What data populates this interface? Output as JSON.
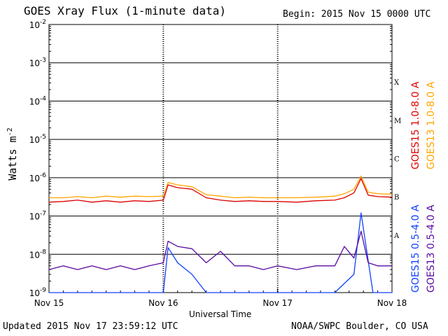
{
  "header": {
    "title": "GOES Xray Flux (1-minute data)",
    "begin": "Begin:  2015 Nov 15 0000 UTC"
  },
  "footer": {
    "updated": "Updated 2015 Nov 17 23:59:12 UTC",
    "credit": "NOAA/SWPC Boulder, CO USA"
  },
  "colors": {
    "goes15_long": "#dd0000",
    "goes13_long": "#ffa500",
    "goes15_short": "#1040ff",
    "goes13_short": "#5a0aa0"
  },
  "chart_data": {
    "type": "line",
    "title": "GOES Xray Flux (1-minute data)",
    "xlabel": "Universal Time",
    "ylabel": "Watts m",
    "ylabel_sup": "-2",
    "y_scale": "log",
    "ylim": [
      1e-09,
      0.01
    ],
    "xlim": [
      "2015-11-15 00:00",
      "2015-11-18 00:00"
    ],
    "x_ticks": [
      {
        "x": "2015-11-15",
        "label": "Nov 15"
      },
      {
        "x": "2015-11-16",
        "label": "Nov 16"
      },
      {
        "x": "2015-11-17",
        "label": "Nov 17"
      },
      {
        "x": "2015-11-18",
        "label": "Nov 18"
      }
    ],
    "y_ticks": [
      {
        "exp": -2
      },
      {
        "exp": -3
      },
      {
        "exp": -4
      },
      {
        "exp": -5
      },
      {
        "exp": -6
      },
      {
        "exp": -7
      },
      {
        "exp": -8
      },
      {
        "exp": -9
      }
    ],
    "flare_classes": [
      {
        "label": "X",
        "exp": -3.5
      },
      {
        "label": "M",
        "exp": -4.5
      },
      {
        "label": "C",
        "exp": -5.5
      },
      {
        "label": "B",
        "exp": -6.5
      },
      {
        "label": "A",
        "exp": -7.5
      }
    ],
    "grid": true,
    "legend_position": "right",
    "series": [
      {
        "name": "GOES15 1.0-8.0 A",
        "color_key": "goes15_long",
        "x": [
          "2015-11-15 00:00",
          "2015-11-15 03:00",
          "2015-11-15 06:00",
          "2015-11-15 09:00",
          "2015-11-15 12:00",
          "2015-11-15 15:00",
          "2015-11-15 18:00",
          "2015-11-15 21:00",
          "2015-11-16 00:00",
          "2015-11-16 01:00",
          "2015-11-16 03:00",
          "2015-11-16 06:00",
          "2015-11-16 09:00",
          "2015-11-16 12:00",
          "2015-11-16 15:00",
          "2015-11-16 18:00",
          "2015-11-16 21:00",
          "2015-11-17 00:00",
          "2015-11-17 04:00",
          "2015-11-17 08:00",
          "2015-11-17 12:00",
          "2015-11-17 14:00",
          "2015-11-17 16:00",
          "2015-11-17 17:30",
          "2015-11-17 19:00",
          "2015-11-17 21:00",
          "2015-11-18 00:00"
        ],
        "y": [
          2.3e-07,
          2.4e-07,
          2.6e-07,
          2.3e-07,
          2.5e-07,
          2.3e-07,
          2.5e-07,
          2.4e-07,
          2.6e-07,
          6.5e-07,
          5.5e-07,
          5e-07,
          3e-07,
          2.6e-07,
          2.4e-07,
          2.5e-07,
          2.4e-07,
          2.4e-07,
          2.3e-07,
          2.5e-07,
          2.6e-07,
          3e-07,
          4e-07,
          9.5e-07,
          3.5e-07,
          3.2e-07,
          3.1e-07
        ]
      },
      {
        "name": "GOES13 1.0-8.0 A",
        "color_key": "goes13_long",
        "x": [
          "2015-11-15 00:00",
          "2015-11-15 03:00",
          "2015-11-15 06:00",
          "2015-11-15 09:00",
          "2015-11-15 12:00",
          "2015-11-15 15:00",
          "2015-11-15 18:00",
          "2015-11-15 21:00",
          "2015-11-16 00:00",
          "2015-11-16 01:00",
          "2015-11-16 03:00",
          "2015-11-16 06:00",
          "2015-11-16 09:00",
          "2015-11-16 12:00",
          "2015-11-16 15:00",
          "2015-11-16 18:00",
          "2015-11-16 21:00",
          "2015-11-17 00:00",
          "2015-11-17 04:00",
          "2015-11-17 08:00",
          "2015-11-17 12:00",
          "2015-11-17 14:00",
          "2015-11-17 16:00",
          "2015-11-17 17:30",
          "2015-11-17 19:00",
          "2015-11-17 21:00",
          "2015-11-18 00:00"
        ],
        "y": [
          3e-07,
          3e-07,
          3.2e-07,
          3e-07,
          3.3e-07,
          3.1e-07,
          3.3e-07,
          3.2e-07,
          3.3e-07,
          7.5e-07,
          6.5e-07,
          5.8e-07,
          3.6e-07,
          3.3e-07,
          3e-07,
          3.1e-07,
          3e-07,
          3e-07,
          3e-07,
          3.1e-07,
          3.3e-07,
          3.8e-07,
          5e-07,
          1.1e-06,
          4.2e-07,
          3.8e-07,
          3.7e-07
        ]
      },
      {
        "name": "GOES15 0.5-4.0 A",
        "color_key": "goes15_short",
        "x": [
          "2015-11-15 00:00",
          "2015-11-15 06:00",
          "2015-11-15 12:00",
          "2015-11-15 18:00",
          "2015-11-16 00:00",
          "2015-11-16 01:00",
          "2015-11-16 03:00",
          "2015-11-16 06:00",
          "2015-11-16 09:00",
          "2015-11-16 12:00",
          "2015-11-16 18:00",
          "2015-11-17 00:00",
          "2015-11-17 06:00",
          "2015-11-17 12:00",
          "2015-11-17 16:00",
          "2015-11-17 17:30",
          "2015-11-17 20:00",
          "2015-11-18 00:00"
        ],
        "y": [
          1e-09,
          1e-09,
          1e-09,
          1e-09,
          1e-09,
          1.5e-08,
          6e-09,
          3e-09,
          1e-09,
          1e-09,
          1e-09,
          1e-09,
          1e-09,
          1e-09,
          3e-09,
          1.2e-07,
          1e-09,
          1e-09
        ]
      },
      {
        "name": "GOES13 0.5-4.0 A",
        "color_key": "goes13_short",
        "x": [
          "2015-11-15 00:00",
          "2015-11-15 03:00",
          "2015-11-15 06:00",
          "2015-11-15 09:00",
          "2015-11-15 12:00",
          "2015-11-15 15:00",
          "2015-11-15 18:00",
          "2015-11-15 21:00",
          "2015-11-16 00:00",
          "2015-11-16 01:00",
          "2015-11-16 03:00",
          "2015-11-16 06:00",
          "2015-11-16 09:00",
          "2015-11-16 12:00",
          "2015-11-16 15:00",
          "2015-11-16 18:00",
          "2015-11-16 21:00",
          "2015-11-17 00:00",
          "2015-11-17 04:00",
          "2015-11-17 08:00",
          "2015-11-17 12:00",
          "2015-11-17 14:00",
          "2015-11-17 16:00",
          "2015-11-17 17:30",
          "2015-11-17 19:00",
          "2015-11-17 21:00",
          "2015-11-18 00:00"
        ],
        "y": [
          4e-09,
          5e-09,
          4e-09,
          5e-09,
          4e-09,
          5e-09,
          4e-09,
          5e-09,
          6e-09,
          2.2e-08,
          1.6e-08,
          1.4e-08,
          6e-09,
          1.2e-08,
          5e-09,
          5e-09,
          4e-09,
          5e-09,
          4e-09,
          5e-09,
          5e-09,
          1.6e-08,
          8e-09,
          4e-08,
          6e-09,
          5e-09,
          5e-09
        ]
      }
    ]
  }
}
